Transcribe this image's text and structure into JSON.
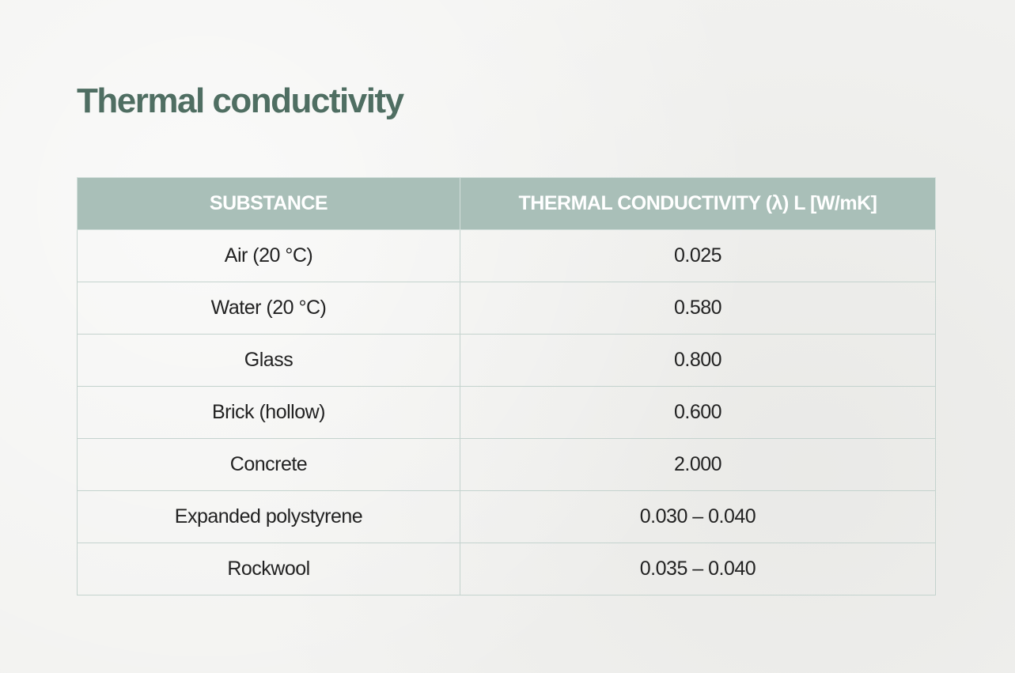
{
  "header": {
    "title": "Thermal conductivity"
  },
  "table": {
    "columns": [
      "SUBSTANCE",
      "THERMAL CONDUCTIVITY (λ) L [W/mK]"
    ],
    "rows": [
      [
        "Air (20 °C)",
        "0.025"
      ],
      [
        "Water (20 °C)",
        "0.580"
      ],
      [
        "Glass",
        "0.800"
      ],
      [
        "Brick (hollow)",
        "0.600"
      ],
      [
        "Concrete",
        "2.000"
      ],
      [
        "Expanded polystyrene",
        "0.030 – 0.040"
      ],
      [
        "Rockwool",
        "0.035 – 0.040"
      ]
    ]
  }
}
